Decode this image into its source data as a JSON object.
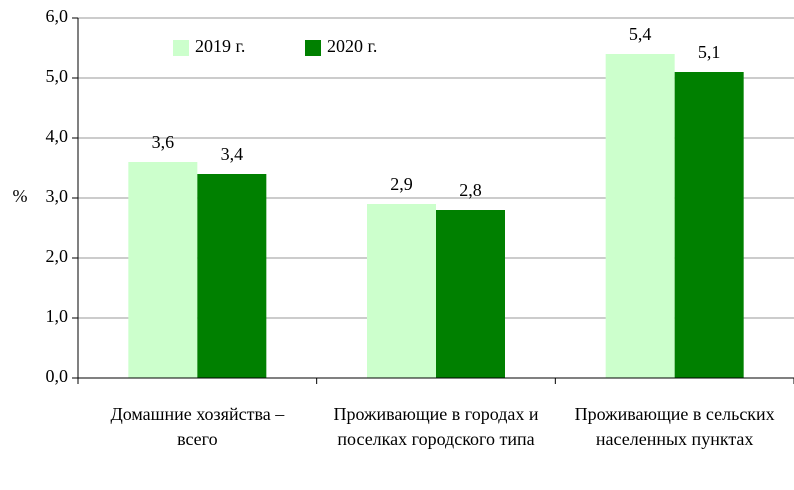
{
  "chart_data": {
    "type": "bar",
    "categories": [
      "Домашние хозяйства – всего",
      "Проживающие в городах и поселках городского типа",
      "Проживающие в сельских населенных пунктах"
    ],
    "series": [
      {
        "name": "2019 г.",
        "color": "#ccffcc",
        "values": [
          3.6,
          2.9,
          5.4
        ],
        "value_labels": [
          "3,6",
          "2,9",
          "5,4"
        ]
      },
      {
        "name": "2020 г.",
        "color": "#008000",
        "values": [
          3.4,
          2.8,
          5.1
        ],
        "value_labels": [
          "3,4",
          "2,8",
          "5,1"
        ]
      }
    ],
    "ylabel": "%",
    "ylim": [
      0,
      6
    ],
    "yticks": [
      {
        "value": 0,
        "label": "0,0"
      },
      {
        "value": 1,
        "label": "1,0"
      },
      {
        "value": 2,
        "label": "2,0"
      },
      {
        "value": 3,
        "label": "3,0"
      },
      {
        "value": 4,
        "label": "4,0"
      },
      {
        "value": 5,
        "label": "5,0"
      },
      {
        "value": 6,
        "label": "6,0"
      }
    ],
    "grid": true,
    "legend": "top"
  }
}
